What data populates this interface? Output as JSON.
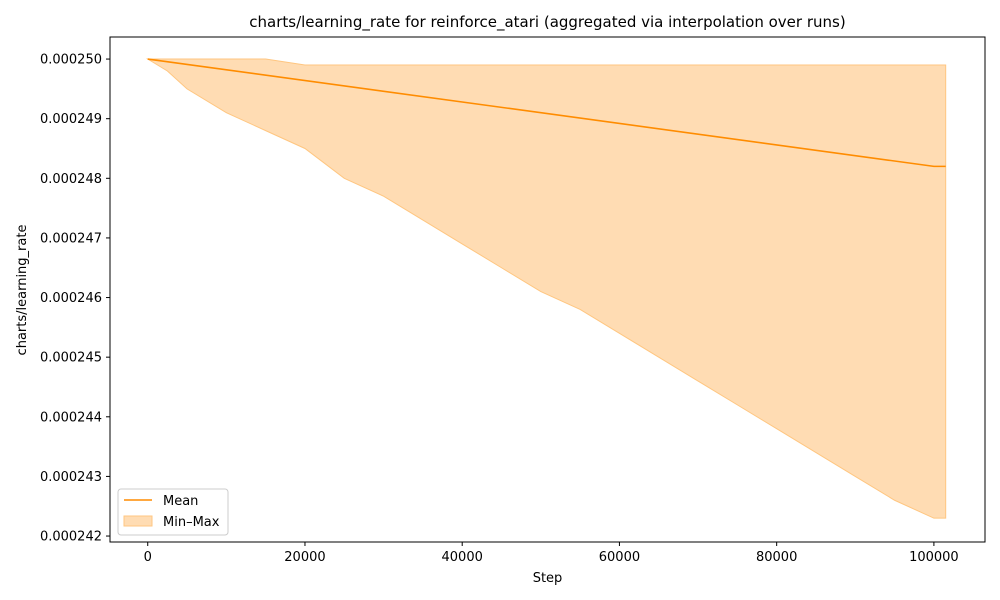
{
  "chart_data": {
    "type": "area",
    "title": "charts/learning_rate for reinforce_atari (aggregated via interpolation over runs)",
    "xlabel": "Step",
    "ylabel": "charts/learning_rate",
    "xlim": [
      -4800,
      106500
    ],
    "ylim": [
      0.0002419,
      0.00025037
    ],
    "x_ticks": [
      0,
      20000,
      40000,
      60000,
      80000,
      100000
    ],
    "x_tick_labels": [
      "0",
      "20000",
      "40000",
      "60000",
      "80000",
      "100000"
    ],
    "y_ticks": [
      0.000242,
      0.000243,
      0.000244,
      0.000245,
      0.000246,
      0.000247,
      0.000248,
      0.000249,
      0.00025
    ],
    "y_tick_labels": [
      "0.000242",
      "0.000243",
      "0.000244",
      "0.000245",
      "0.000246",
      "0.000247",
      "0.000248",
      "0.000249",
      "0.000250"
    ],
    "grid": false,
    "legend_position": "lower-left",
    "colors": {
      "mean": "#ff8c00",
      "band": "#ffdcb3",
      "band_edge": "#ffc680"
    },
    "series": [
      {
        "name": "Mean",
        "kind": "line",
        "x": [
          0,
          100000,
          101500
        ],
        "y": [
          0.00025,
          0.0002482,
          0.0002482
        ]
      },
      {
        "name": "Min–Max",
        "kind": "band",
        "x": [
          0,
          2500,
          5000,
          10000,
          15000,
          20000,
          25000,
          30000,
          35000,
          40000,
          45000,
          50000,
          55000,
          60000,
          65000,
          70000,
          75000,
          80000,
          85000,
          90000,
          95000,
          100000,
          101500
        ],
        "y_min": [
          0.00025,
          0.0002498,
          0.0002495,
          0.0002491,
          0.0002488,
          0.0002485,
          0.000248,
          0.0002477,
          0.0002473,
          0.0002469,
          0.0002465,
          0.0002461,
          0.0002458,
          0.0002454,
          0.000245,
          0.0002446,
          0.0002442,
          0.0002438,
          0.0002434,
          0.000243,
          0.0002426,
          0.0002423,
          0.0002423
        ],
        "y_max": [
          0.00025,
          0.00025,
          0.00025,
          0.00025,
          0.00025,
          0.0002499,
          0.0002499,
          0.0002499,
          0.0002499,
          0.0002499,
          0.0002499,
          0.0002499,
          0.0002499,
          0.0002499,
          0.0002499,
          0.0002499,
          0.0002499,
          0.0002499,
          0.0002499,
          0.0002499,
          0.0002499,
          0.0002499,
          0.0002499
        ]
      }
    ]
  }
}
